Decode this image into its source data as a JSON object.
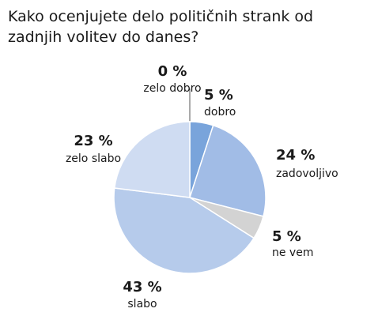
{
  "chart_data": {
    "type": "pie",
    "title": "Kako ocenjujete delo političnih strank od zadnjih volitev do danes?",
    "slices": [
      {
        "label": "zelo dobro",
        "value": 0,
        "display": "0 %",
        "color": "#4a7fc8"
      },
      {
        "label": "dobro",
        "value": 5,
        "display": "5 %",
        "color": "#79a4db"
      },
      {
        "label": "zadovoljivo",
        "value": 24,
        "display": "24 %",
        "color": "#a1bce6"
      },
      {
        "label": "ne vem",
        "value": 5,
        "display": "5 %",
        "color": "#d3d3d3"
      },
      {
        "label": "slabo",
        "value": 43,
        "display": "43 %",
        "color": "#b6cbeb"
      },
      {
        "label": "zelo slabo",
        "value": 23,
        "display": "23 %",
        "color": "#cfdcf2"
      }
    ]
  }
}
